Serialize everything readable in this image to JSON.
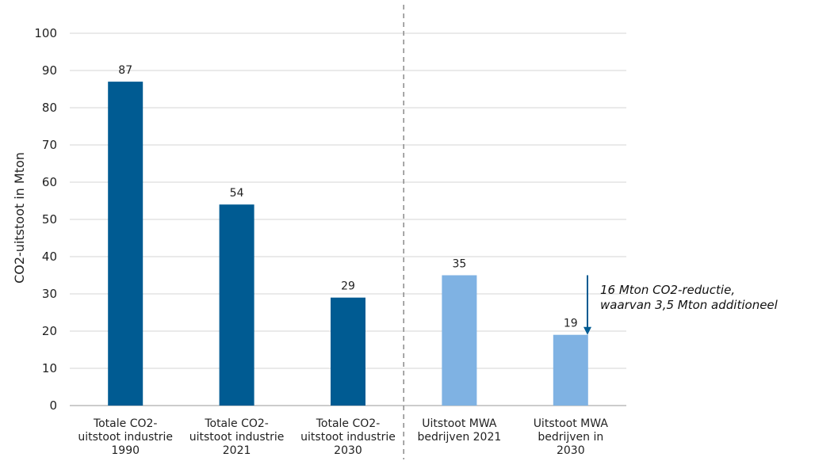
{
  "chart_data": {
    "type": "bar",
    "ylabel": "CO2-uitstoot in Mton",
    "ylim": [
      0,
      100
    ],
    "yticks": [
      0,
      10,
      20,
      30,
      40,
      50,
      60,
      70,
      80,
      90,
      100
    ],
    "grid": true,
    "categories": [
      [
        "Totale CO2-",
        "uitstoot industrie",
        "1990"
      ],
      [
        "Totale CO2-",
        "uitstoot industrie",
        "2021"
      ],
      [
        "Totale CO2-",
        "uitstoot industrie",
        "2030"
      ],
      [
        "Uitstoot MWA",
        "bedrijven 2021"
      ],
      [
        "Uitstoot MWA",
        "bedrijven in",
        "2030"
      ]
    ],
    "values": [
      87,
      54,
      29,
      35,
      19
    ],
    "data_labels": [
      "87",
      "54",
      "29",
      "35",
      "19"
    ],
    "colors": [
      "#005b92",
      "#005b92",
      "#005b92",
      "#7fb2e3",
      "#7fb2e3"
    ],
    "divider_after_index": 2,
    "annotation": {
      "lines": [
        "16 Mton CO2-reductie,",
        "waarvan 3,5 Mton additioneel"
      ],
      "arrow_from_value": 35,
      "arrow_to_value": 19,
      "arrow_color": "#005b92"
    }
  }
}
